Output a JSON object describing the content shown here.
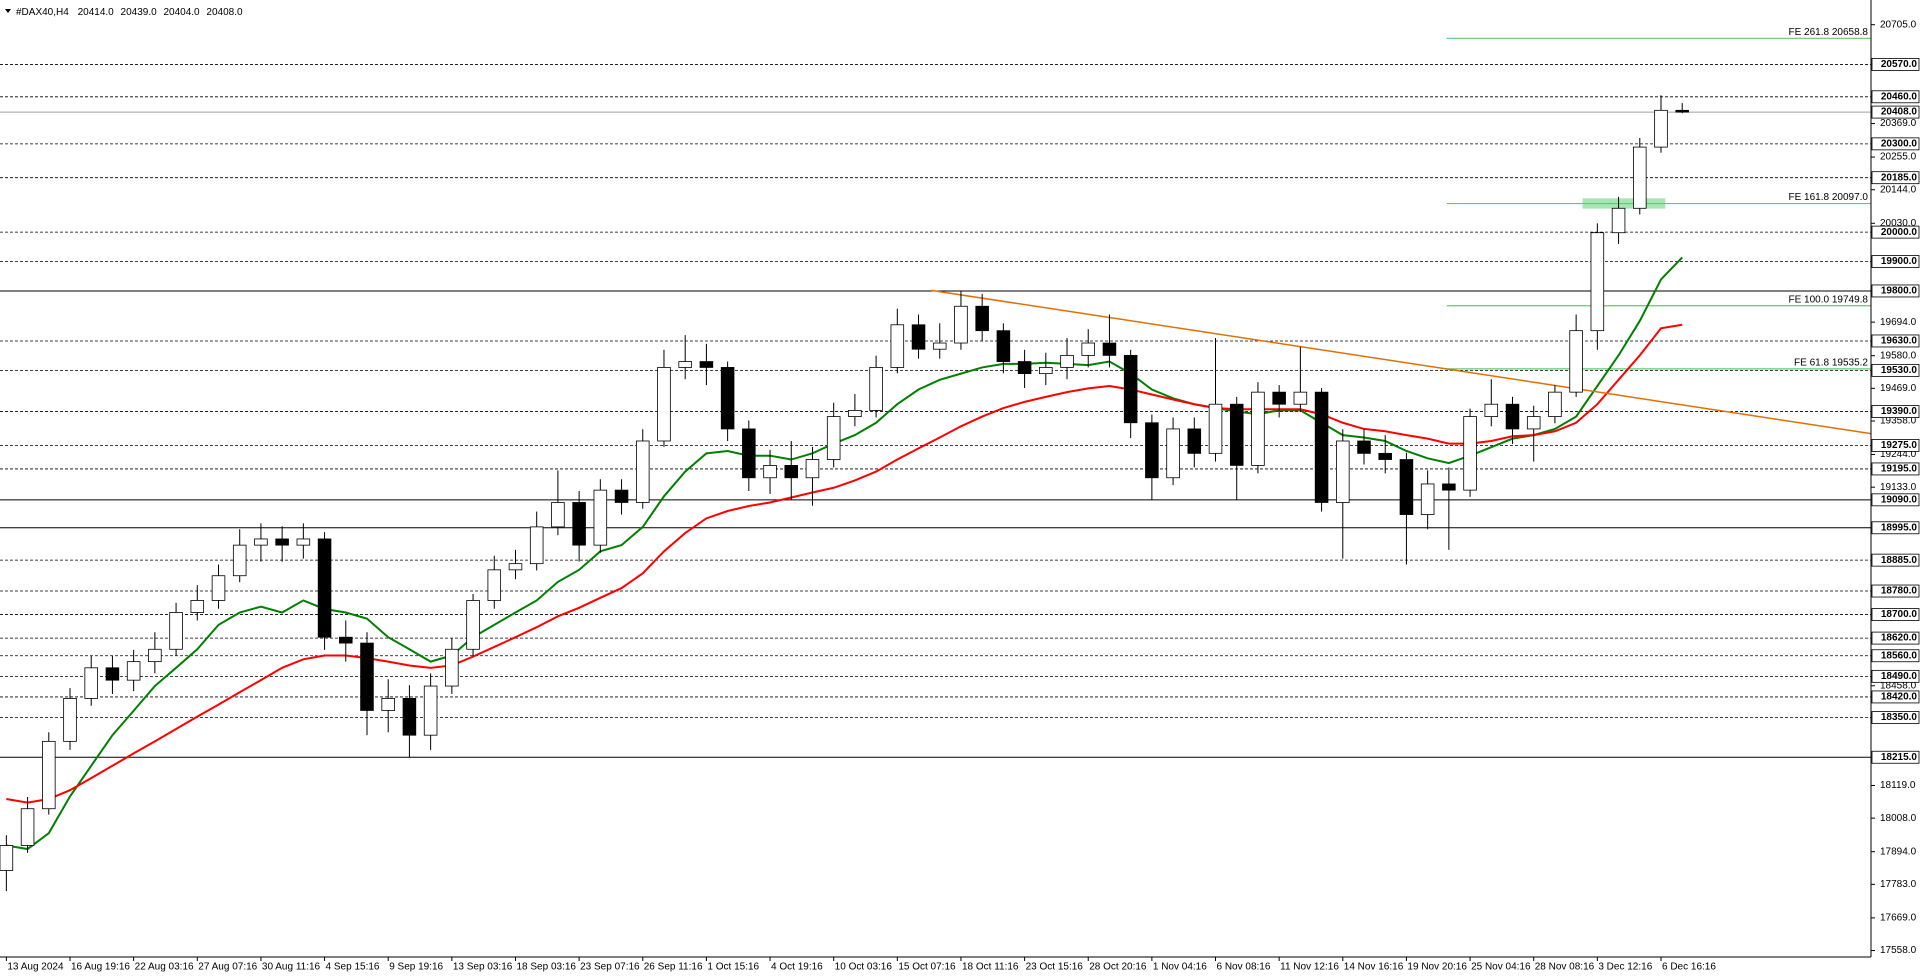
{
  "chart_data": {
    "type": "candlestick",
    "title": "#DAX40,H4",
    "header_values": [
      "20414.0",
      "20439.0",
      "20404.0",
      "20408.0"
    ],
    "categories": [
      "13 Aug 2024",
      null,
      null,
      "16 Aug 19:16",
      null,
      null,
      "22 Aug 03:16",
      null,
      null,
      "27 Aug 07:16",
      null,
      null,
      "30 Aug 11:16",
      null,
      null,
      "4 Sep 15:16",
      null,
      null,
      "9 Sep 19:16",
      null,
      null,
      "13 Sep 03:16",
      null,
      null,
      "18 Sep 03:16",
      null,
      null,
      "23 Sep 07:16",
      null,
      null,
      "26 Sep 11:16",
      null,
      null,
      "1 Oct 15:16",
      null,
      null,
      "4 Oct 19:16",
      null,
      null,
      "10 Oct 03:16",
      null,
      null,
      "15 Oct 07:16",
      null,
      null,
      "18 Oct 11:16",
      null,
      null,
      "23 Oct 15:16",
      null,
      null,
      "28 Oct 20:16",
      null,
      null,
      "1 Nov 04:16",
      null,
      null,
      "6 Nov 08:16",
      null,
      null,
      "11 Nov 12:16",
      null,
      null,
      "14 Nov 16:16",
      null,
      null,
      "19 Nov 20:16",
      null,
      null,
      "25 Nov 04:16",
      null,
      null,
      "28 Nov 08:16",
      null,
      null,
      "3 Dec 12:16",
      null,
      null,
      "6 Dec 16:16",
      null
    ],
    "open": [
      17830,
      17915,
      18040,
      18269,
      18415,
      18519,
      18477,
      18540,
      18582,
      18707,
      18748,
      18832,
      18936,
      18957,
      18936,
      18957,
      18623,
      18603,
      18374,
      18415,
      18290,
      18457,
      18582,
      18748,
      18852,
      18873,
      18998,
      19081,
      18936,
      19123,
      19081,
      19290,
      19540,
      19560,
      19540,
      19331,
      19165,
      19207,
      19165,
      19227,
      19373,
      19394,
      19540,
      19685,
      19602,
      19623,
      19748,
      19665,
      19560,
      19519,
      19540,
      19581,
      19623,
      19581,
      19352,
      19165,
      19331,
      19248,
      19415,
      19207,
      19456,
      19415,
      19456,
      19081,
      19290,
      19248,
      19227,
      19040,
      19144,
      19123,
      19373,
      19415,
      19331,
      19373,
      19456,
      19665,
      19998,
      20081,
      20289,
      20414
    ],
    "high": [
      17950,
      18080,
      18300,
      18450,
      18560,
      18560,
      18580,
      18640,
      18740,
      18800,
      18870,
      18990,
      19010,
      19000,
      19010,
      18980,
      18680,
      18640,
      18480,
      18460,
      18500,
      18620,
      18770,
      18900,
      18920,
      19050,
      19190,
      19120,
      19160,
      19160,
      19330,
      19600,
      19650,
      19620,
      19560,
      19360,
      19260,
      19290,
      19270,
      19420,
      19450,
      19580,
      19740,
      19720,
      19690,
      19800,
      19790,
      19690,
      19600,
      19590,
      19640,
      19670,
      19720,
      19600,
      19380,
      19370,
      19370,
      19640,
      19440,
      19490,
      19480,
      19610,
      19470,
      19330,
      19330,
      19310,
      19250,
      19190,
      19200,
      19400,
      19500,
      19440,
      19410,
      19480,
      19720,
      20030,
      20120,
      20320,
      20465,
      20439
    ],
    "low": [
      17760,
      17890,
      18020,
      18240,
      18390,
      18430,
      18440,
      18500,
      18560,
      18680,
      18720,
      18810,
      18880,
      18880,
      18890,
      18580,
      18540,
      18290,
      18300,
      18215,
      18240,
      18430,
      18560,
      18720,
      18820,
      18850,
      18970,
      18880,
      18910,
      19040,
      19060,
      19270,
      19500,
      19480,
      19290,
      19120,
      19110,
      19090,
      19070,
      19200,
      19340,
      19370,
      19520,
      19570,
      19570,
      19600,
      19630,
      19520,
      19470,
      19480,
      19500,
      19540,
      19540,
      19300,
      19090,
      19140,
      19200,
      19220,
      19090,
      19180,
      19370,
      19390,
      19050,
      18890,
      19210,
      19180,
      18870,
      18990,
      18920,
      19100,
      19340,
      19280,
      19220,
      19350,
      19440,
      19600,
      19960,
      20060,
      20270,
      20404
    ],
    "close": [
      17915,
      18040,
      18269,
      18415,
      18519,
      18477,
      18540,
      18582,
      18707,
      18748,
      18832,
      18936,
      18957,
      18936,
      18957,
      18623,
      18603,
      18374,
      18415,
      18290,
      18457,
      18582,
      18748,
      18852,
      18873,
      18998,
      19081,
      18936,
      19123,
      19081,
      19290,
      19540,
      19560,
      19540,
      19331,
      19165,
      19207,
      19165,
      19227,
      19373,
      19394,
      19540,
      19685,
      19602,
      19623,
      19748,
      19665,
      19560,
      19519,
      19540,
      19581,
      19623,
      19581,
      19352,
      19165,
      19331,
      19248,
      19415,
      19207,
      19456,
      19415,
      19456,
      19081,
      19290,
      19248,
      19227,
      19040,
      19144,
      19123,
      19373,
      19415,
      19331,
      19373,
      19456,
      19665,
      19998,
      20081,
      20289,
      20414,
      20408
    ],
    "candle_up_color": "#ffffff",
    "candle_down_color": "#000000",
    "xlim": [
      -0.3,
      87.9
    ],
    "ylim": [
      17536,
      20789
    ],
    "yticks": [
      {
        "value": 20705,
        "label": "20705.0"
      },
      {
        "value": 20369,
        "label": "20369.0"
      },
      {
        "value": 20255,
        "label": "20255.0"
      },
      {
        "value": 20144,
        "label": "20144.0"
      },
      {
        "value": 20030,
        "label": "20030.0"
      },
      {
        "value": 19694,
        "label": "19694.0"
      },
      {
        "value": 19580,
        "label": "19580.0"
      },
      {
        "value": 19469,
        "label": "19469.0"
      },
      {
        "value": 19358,
        "label": "19358.0"
      },
      {
        "value": 19244,
        "label": "19244.0"
      },
      {
        "value": 19133,
        "label": "19133.0"
      },
      {
        "value": 18458,
        "label": "18458.0"
      },
      {
        "value": 18119,
        "label": "18119.0"
      },
      {
        "value": 18008,
        "label": "18008.0"
      },
      {
        "value": 17894,
        "label": "17894.0"
      },
      {
        "value": 17783,
        "label": "17783.0"
      },
      {
        "value": 17669,
        "label": "17669.0"
      },
      {
        "value": 17558,
        "label": "17558.0"
      }
    ],
    "levels": [
      {
        "value": 20570,
        "label": "20570.0",
        "style": "dashed"
      },
      {
        "value": 20460,
        "label": "20460.0",
        "style": "dashed"
      },
      {
        "value": 20300,
        "label": "20300.0",
        "style": "dashed"
      },
      {
        "value": 20185,
        "label": "20185.0",
        "style": "dashed"
      },
      {
        "value": 20000,
        "label": "20000.0",
        "style": "dashed"
      },
      {
        "value": 19900,
        "label": "19900.0",
        "style": "dashed"
      },
      {
        "value": 19800,
        "label": "19800.0",
        "style": "solid"
      },
      {
        "value": 19630,
        "label": "19630.0",
        "style": "dashed"
      },
      {
        "value": 19530,
        "label": "19530.0",
        "style": "dashed"
      },
      {
        "value": 19390,
        "label": "19390.0",
        "style": "dashed"
      },
      {
        "value": 19275,
        "label": "19275.0",
        "style": "dashed"
      },
      {
        "value": 19195,
        "label": "19195.0",
        "style": "dashed"
      },
      {
        "value": 19090,
        "label": "19090.0",
        "style": "solid"
      },
      {
        "value": 18995,
        "label": "18995.0",
        "style": "solid"
      },
      {
        "value": 18885,
        "label": "18885.0",
        "style": "dashed"
      },
      {
        "value": 18780,
        "label": "18780.0",
        "style": "dashed"
      },
      {
        "value": 18700,
        "label": "18700.0",
        "style": "dashed"
      },
      {
        "value": 18620,
        "label": "18620.0",
        "style": "dashed"
      },
      {
        "value": 18560,
        "label": "18560.0",
        "style": "dashed"
      },
      {
        "value": 18490,
        "label": "18490.0",
        "style": "dashed"
      },
      {
        "value": 18420,
        "label": "18420.0",
        "style": "dashed"
      },
      {
        "value": 18350,
        "label": "18350.0",
        "style": "dashed"
      },
      {
        "value": 18215,
        "label": "18215.0",
        "style": "solid"
      }
    ],
    "current_price": {
      "value": 20408,
      "label": "20408.0",
      "color": "#a0a0a0"
    },
    "moving_averages": [
      {
        "color": "#008000",
        "values": [
          17915,
          17903,
          17957,
          18082,
          18186,
          18290,
          18373,
          18457,
          18519,
          18582,
          18665,
          18707,
          18727,
          18707,
          18748,
          18719,
          18707,
          18686,
          18623,
          18582,
          18540,
          18561,
          18623,
          18665,
          18707,
          18748,
          18811,
          18852,
          18915,
          18936,
          18998,
          19102,
          19186,
          19248,
          19256,
          19240,
          19240,
          19227,
          19248,
          19281,
          19310,
          19352,
          19415,
          19465,
          19498,
          19519,
          19540,
          19552,
          19552,
          19556,
          19552,
          19548,
          19560,
          19519,
          19465,
          19435,
          19415,
          19402,
          19390,
          19381,
          19394,
          19394,
          19352,
          19310,
          19302,
          19290,
          19256,
          19231,
          19215,
          19240,
          19269,
          19298,
          19310,
          19331,
          19373,
          19477,
          19581,
          19698,
          19839,
          19914
        ]
      },
      {
        "color": "#ff0000",
        "values": [
          18073,
          18061,
          18073,
          18103,
          18144,
          18186,
          18228,
          18269,
          18311,
          18353,
          18394,
          18436,
          18477,
          18519,
          18548,
          18561,
          18561,
          18552,
          18540,
          18527,
          18519,
          18527,
          18557,
          18590,
          18623,
          18657,
          18694,
          18723,
          18757,
          18790,
          18840,
          18915,
          18977,
          19027,
          19052,
          19069,
          19081,
          19098,
          19115,
          19131,
          19156,
          19186,
          19227,
          19265,
          19302,
          19340,
          19373,
          19402,
          19423,
          19440,
          19456,
          19469,
          19477,
          19465,
          19448,
          19431,
          19415,
          19402,
          19398,
          19398,
          19398,
          19398,
          19381,
          19352,
          19331,
          19323,
          19310,
          19298,
          19281,
          19281,
          19290,
          19306,
          19310,
          19323,
          19352,
          19415,
          19498,
          19581,
          19673,
          19685
        ]
      }
    ],
    "trendline": {
      "color": "#e07000",
      "x": [
        43.6,
        87.9
      ],
      "y": [
        19802,
        19315
      ]
    },
    "fibonacci": {
      "color": "#60c878",
      "x_start": 67.9,
      "levels": [
        {
          "value": 20658.8,
          "label": "FE 261.8 20658.8"
        },
        {
          "value": 20097.0,
          "label": "FE 161.8 20097.0"
        },
        {
          "value": 19749.8,
          "label": "FE 100.0 19749.8"
        },
        {
          "value": 19535.2,
          "label": "FE 61.8 19535.2"
        }
      ],
      "zone": {
        "color": "#8fe0a0",
        "x": [
          74.3,
          78.2
        ],
        "y": [
          20080,
          20115
        ]
      }
    }
  }
}
